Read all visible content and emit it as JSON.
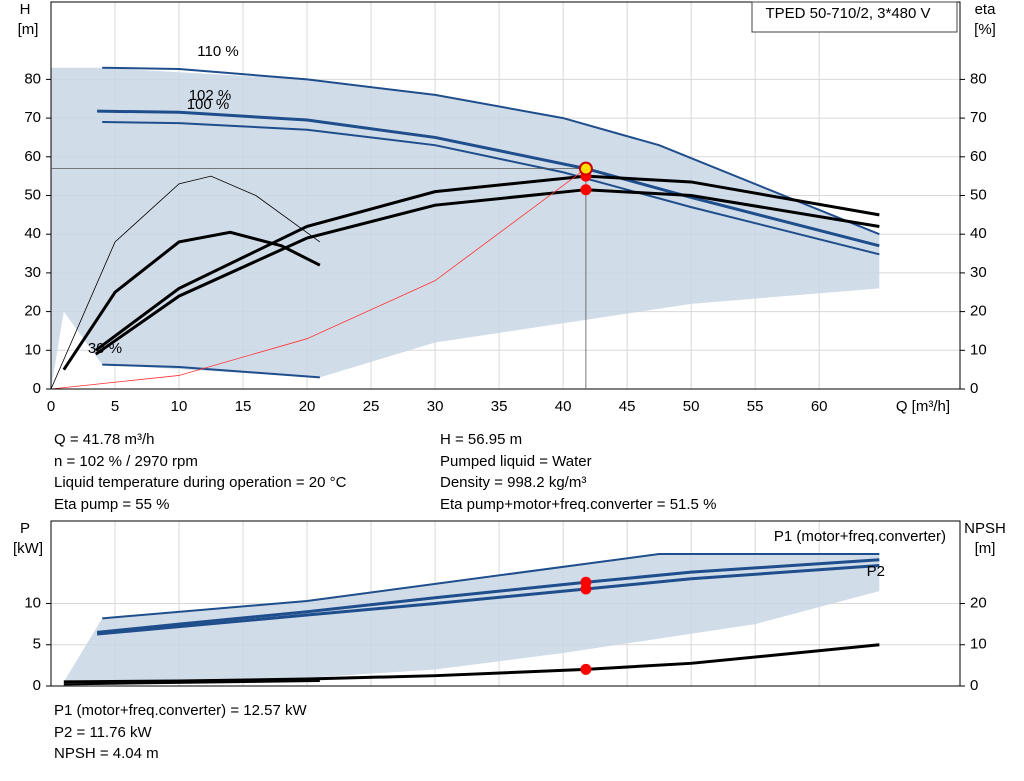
{
  "chart_data": [
    {
      "type": "line",
      "title": "TPED 50-710/2, 3*480 V",
      "ylabel": "H",
      "yunit": "[m]",
      "y2label": "eta",
      "y2unit": "[%]",
      "xlabel": "Q [m³/h]",
      "xlim": [
        0,
        71
      ],
      "xticks": [
        0,
        5,
        10,
        15,
        20,
        25,
        30,
        35,
        40,
        45,
        50,
        55,
        60
      ],
      "ylim": [
        0,
        100
      ],
      "yticks": [
        0,
        10,
        20,
        30,
        40,
        50,
        60,
        70,
        80
      ],
      "y2lim": [
        0,
        100
      ],
      "y2ticks": [
        0,
        10,
        20,
        30,
        40,
        50,
        60,
        70,
        80
      ],
      "grid": true,
      "area": {
        "color": "#c9d6e5",
        "x": [
          0,
          4,
          20,
          30,
          40,
          47.5,
          64.7,
          64.7,
          50,
          40,
          30,
          21,
          4,
          1,
          0
        ],
        "values": [
          83,
          83,
          80,
          76,
          70,
          63,
          40,
          26,
          22,
          17,
          12,
          3,
          6.3,
          20,
          0
        ]
      },
      "series": [
        {
          "name": "110 %",
          "color": "#1f4e8c",
          "x": [
            4,
            10,
            20,
            30,
            40,
            47.5,
            64.7
          ],
          "values": [
            83,
            82.7,
            80,
            76,
            70,
            63,
            40
          ]
        },
        {
          "name": "102 %",
          "color": "#1f4e8c",
          "x": [
            3.6,
            10,
            20,
            30,
            41.78,
            50,
            64.7
          ],
          "values": [
            71.8,
            71.5,
            69.5,
            65,
            56.95,
            49.5,
            37
          ]
        },
        {
          "name": "100 %",
          "color": "#1f4e8c",
          "x": [
            4,
            10,
            20,
            30,
            40,
            50,
            64.7
          ],
          "values": [
            69,
            68.7,
            67,
            63,
            56,
            47,
            34.8
          ]
        },
        {
          "name": "30 %",
          "color": "#1f4e8c",
          "x": [
            4,
            10,
            21
          ],
          "values": [
            6.3,
            5.7,
            3
          ]
        },
        {
          "color": "#000000",
          "axis": "y2",
          "x": [
            3.5,
            10,
            20,
            30,
            41.78,
            50,
            64.7
          ],
          "values": [
            10,
            26,
            42,
            51,
            55,
            53.5,
            45
          ]
        },
        {
          "color": "#000000",
          "axis": "y2",
          "x": [
            3.5,
            10,
            20,
            30,
            41.78,
            50,
            64.7
          ],
          "values": [
            9,
            24,
            39,
            47.5,
            51.5,
            50,
            42
          ]
        },
        {
          "color": "#000000",
          "axis": "y2",
          "x": [
            0,
            5,
            10,
            12.5,
            16,
            21
          ],
          "values": [
            0,
            38,
            53,
            55,
            50,
            38
          ]
        },
        {
          "color": "#000000",
          "axis": "y2",
          "x": [
            1,
            5,
            10,
            14,
            18,
            21
          ],
          "values": [
            5,
            25,
            38,
            40.5,
            37,
            32
          ]
        },
        {
          "color": "#ff3333",
          "x": [
            0,
            10,
            20,
            30,
            41.78
          ],
          "values": [
            0,
            3.5,
            13,
            28,
            56.95
          ]
        }
      ],
      "duty_point": {
        "x": 41.78,
        "y": 56.95
      },
      "eta_points": [
        55,
        51.5
      ]
    },
    {
      "type": "line",
      "ylabel": "P",
      "yunit": "[kW]",
      "y2label": "NPSH",
      "y2unit": "[m]",
      "xlim": [
        0,
        71
      ],
      "xticks": [
        0,
        5,
        10,
        15,
        20,
        25,
        30,
        35,
        40,
        45,
        50,
        55,
        60
      ],
      "ylim": [
        0,
        20
      ],
      "yticks": [
        0,
        5,
        10
      ],
      "y2lim": [
        0,
        40
      ],
      "y2ticks": [
        0,
        10,
        20
      ],
      "grid": true,
      "area": {
        "color": "#c9d6e5",
        "x": [
          4,
          20,
          47.5,
          64.7,
          64.7,
          55,
          40,
          30,
          20,
          10,
          4,
          1
        ],
        "values": [
          8.2,
          10.3,
          16,
          16,
          11.5,
          7.5,
          4,
          2,
          1,
          0.5,
          0.5,
          0.5
        ]
      },
      "series": [
        {
          "color": "#1f4e8c",
          "x": [
            4,
            20,
            47.5,
            64.7
          ],
          "values": [
            8.2,
            10.3,
            16,
            16
          ]
        },
        {
          "name": "P1 (motor+freq.converter)",
          "color": "#1f4e8c",
          "x": [
            3.6,
            10,
            20,
            30,
            41.78,
            50,
            64.7
          ],
          "values": [
            6.5,
            7.5,
            9,
            10.7,
            12.57,
            13.8,
            15.3
          ]
        },
        {
          "name": "P2",
          "color": "#1f4e8c",
          "x": [
            3.6,
            10,
            20,
            30,
            41.78,
            50,
            64.7
          ],
          "values": [
            6.3,
            7.2,
            8.6,
            10,
            11.76,
            13,
            14.6
          ]
        },
        {
          "color": "#000000",
          "axis": "y2",
          "x": [
            1,
            10,
            20,
            30,
            41.78,
            50,
            64.7
          ],
          "values": [
            1,
            1.2,
            1.7,
            2.5,
            4.04,
            5.5,
            10
          ]
        },
        {
          "color": "#000000",
          "x": [
            1,
            21
          ],
          "values": [
            0.2,
            0.6
          ]
        }
      ],
      "markers": {
        "x": 41.78,
        "values": [
          12.57,
          11.76
        ],
        "npsh": 4.04
      }
    }
  ],
  "info": [
    "Q = 41.78 m³/h",
    "H = 56.95 m",
    "n = 102 % / 2970 rpm",
    "Pumped liquid = Water",
    "Liquid temperature during operation = 20 °C",
    "Density = 998.2 kg/m³",
    "Eta pump = 55 %",
    "Eta pump+motor+freq.converter = 51.5 %"
  ],
  "info2": [
    "P1 (motor+freq.converter) = 12.57 kW",
    "P2 = 11.76 kW",
    "NPSH = 4.04 m"
  ]
}
